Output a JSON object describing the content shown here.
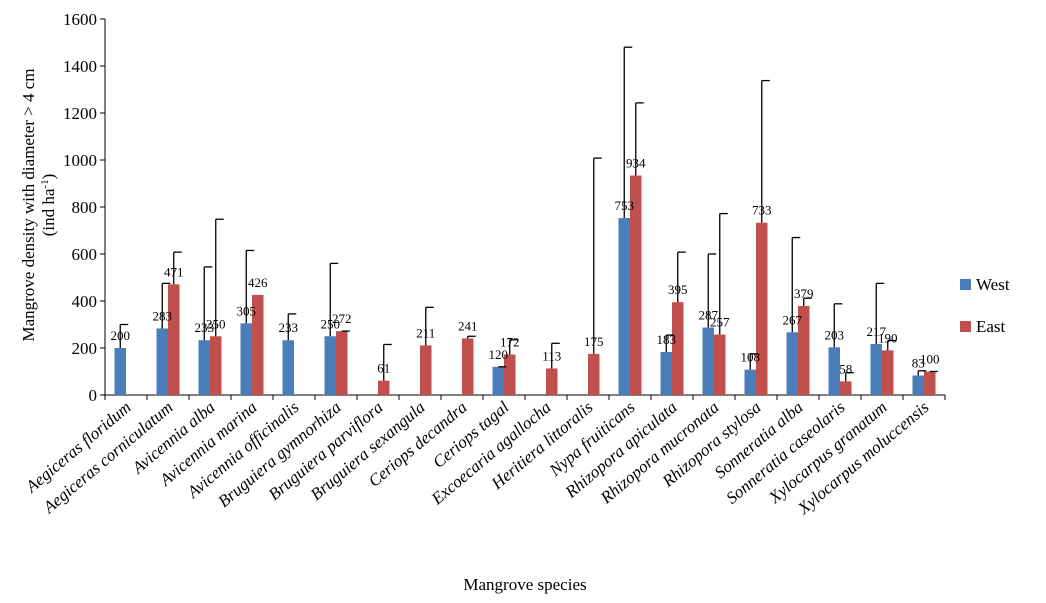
{
  "chart_data": {
    "type": "bar",
    "xlabel": "Mangrove species",
    "ylabel_line1": "Mangrove density with diameter > 4 cm",
    "ylabel_line2_main": "(ind ha",
    "ylabel_line2_sup": "-1",
    "ylabel_line2_end": ")",
    "ylim": [
      0,
      1600
    ],
    "yticks": [
      "0",
      "200",
      "400",
      "600",
      "800",
      "1000",
      "1200",
      "1400",
      "1600"
    ],
    "legend_position": "right",
    "categories": [
      "Aegiceras floridum",
      "Aegiceras corniculatum",
      "Avicennia alba",
      "Avicennia marina",
      "Avicennia officinalis",
      "Bruguiera gymnorhiza",
      "Bruguiera parviflora",
      "Bruguiera sexangula",
      "Ceriops decandra",
      "Ceriops tagal",
      "Excoecaria agallocha",
      "Heritiera littoralis",
      "Nypa fruiticans",
      "Rhizopora apiculata",
      "Rhizopora mucronata",
      "Rhizopora stylosa",
      "Sonneratia alba",
      "Sonneratia caseolaris",
      "Xylocarpus granatum",
      "Xylocarpus moluccensis"
    ],
    "series": [
      {
        "name": "West",
        "color": "#4a7ebb",
        "values": [
          200,
          283,
          233,
          305,
          233,
          250,
          null,
          null,
          null,
          120,
          null,
          null,
          753,
          183,
          287,
          108,
          267,
          203,
          217,
          83
        ],
        "labels": [
          "200",
          "283",
          "233",
          "305",
          "233",
          "250",
          "",
          "",
          "",
          "120",
          "",
          "",
          "753",
          "183",
          "287",
          "108",
          "267",
          "203",
          "217",
          "83"
        ],
        "errors": [
          300,
          475,
          545,
          615,
          345,
          560,
          null,
          null,
          null,
          120,
          null,
          null,
          1480,
          255,
          600,
          175,
          670,
          388,
          475,
          103
        ]
      },
      {
        "name": "East",
        "color": "#c0504d",
        "values": [
          null,
          471,
          250,
          426,
          null,
          272,
          61,
          211,
          241,
          172,
          113,
          175,
          934,
          395,
          257,
          733,
          379,
          58,
          190,
          100
        ],
        "labels": [
          "",
          "471",
          "250",
          "426",
          "",
          "272",
          "61",
          "211",
          "241",
          "172",
          "113",
          "175",
          "934",
          "395",
          "257",
          "733",
          "379",
          "58",
          "190",
          "100"
        ],
        "errors": [
          null,
          608,
          748,
          null,
          null,
          272,
          215,
          373,
          250,
          235,
          220,
          1008,
          1243,
          608,
          772,
          1338,
          412,
          95,
          232,
          100
        ]
      }
    ]
  }
}
